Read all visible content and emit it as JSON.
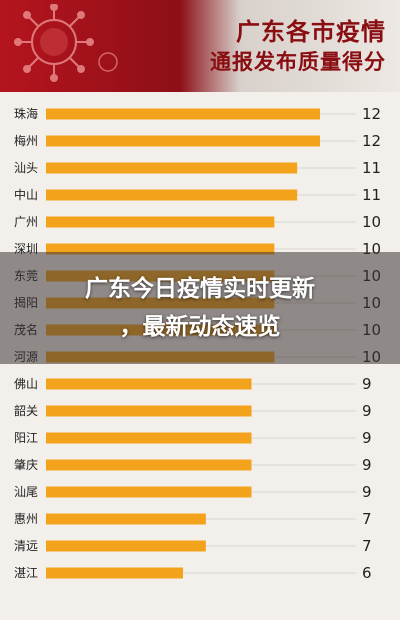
{
  "chart_title_line1": "广东各市疫情",
  "chart_title_line2": "通报发布质量得分",
  "overlay_line1": "广东今日疫情实时更新",
  "overlay_line2": "，最新动态速览",
  "colors": {
    "bar": "#f3a21b",
    "header_red": "#b5141e",
    "title": "#8a0d12",
    "gridline": "#d9d4cf"
  },
  "chart_data": {
    "type": "bar",
    "orientation": "horizontal",
    "title": "广东各市疫情通报发布质量得分",
    "categories": [
      "珠海",
      "梅州",
      "汕头",
      "中山",
      "广州",
      "深圳",
      "东莞",
      "揭阳",
      "茂名",
      "河源",
      "佛山",
      "韶关",
      "阳江",
      "肇庆",
      "汕尾",
      "惠州",
      "清远",
      "湛江"
    ],
    "values": [
      12,
      12,
      11,
      11,
      10,
      10,
      10,
      10,
      10,
      10,
      9,
      9,
      9,
      9,
      9,
      7,
      7,
      6
    ],
    "xlim": [
      0,
      12
    ]
  }
}
